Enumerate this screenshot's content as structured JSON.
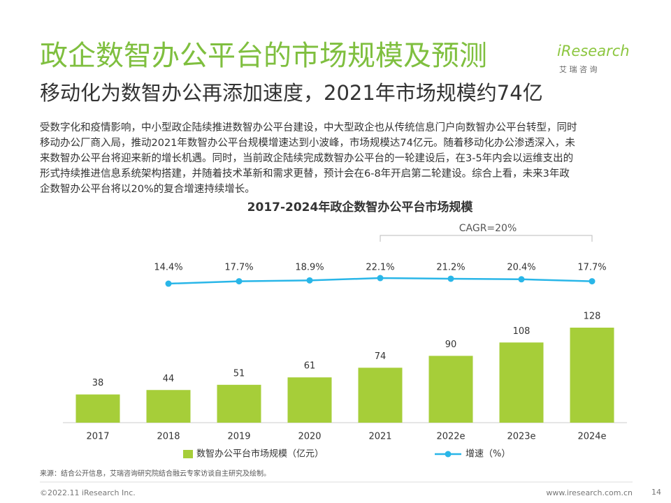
{
  "header": {
    "title": "政企数智办公平台的市场规模及预测",
    "subtitle": "移动化为数智办公再添加速度，2021年市场规模约74亿",
    "logo": "iResearch",
    "logo_sub": "艾 瑞 咨 询"
  },
  "paragraph": [
    "受数字化和疫情影响，中小型政企陆续推进数智办公平台建设，中大型政企也从传统信息门户向数智办公平台转型，同时",
    "移动办公厂商入局，推动2021年数智办公平台规模增速达到小波峰，市场规模达74亿元。随着移动化办公渗透深入，未",
    "来数智办公平台将迎来新的增长机遇。同时，当前政企陆续完成数智办公平台的一轮建设后，在3-5年内会以运维支出的",
    "形式持续推进信息系统架构搭建，并随着技术革新和需求更替，预计会在6-8年开启第二轮建设。综合上看，未来3年政",
    "企数智办公平台将以20%的复合增速持续增长。"
  ],
  "chart_data": {
    "type": "bar_line",
    "title": "2017-2024年政企数智办公平台市场规模",
    "categories": [
      "2017",
      "2018",
      "2019",
      "2020",
      "2021",
      "2022e",
      "2023e",
      "2024e"
    ],
    "series": [
      {
        "name": "数智办公平台市场规模（亿元）",
        "type": "bar",
        "color": "#a6ce39",
        "values": [
          38,
          44,
          51,
          61,
          74,
          90,
          108,
          128
        ]
      },
      {
        "name": "增速（%）",
        "type": "line",
        "color": "#29b6e8",
        "values": [
          null,
          14.4,
          17.7,
          18.9,
          22.1,
          21.2,
          20.4,
          17.7
        ],
        "value_labels": [
          null,
          "14.4%",
          "17.7%",
          "18.9%",
          "22.1%",
          "21.2%",
          "20.4%",
          "17.7%"
        ]
      }
    ],
    "annotation": "CAGR=20%"
  },
  "footer": {
    "source": "来源：结合公开信息，艾瑞咨询研究院结合融云专家访谈自主研究及绘制。",
    "copyright": "©2022.11 iResearch Inc.",
    "website": "www.iresearch.com.cn",
    "page": "14"
  }
}
